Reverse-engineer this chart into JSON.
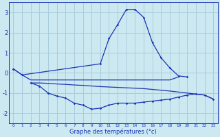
{
  "xlabel": "Graphe des températures (°c)",
  "background_color": "#cce8f0",
  "grid_color": "#aaccdd",
  "line_color": "#1a35b5",
  "hours": [
    0,
    1,
    2,
    3,
    4,
    5,
    6,
    7,
    8,
    9,
    10,
    11,
    12,
    13,
    14,
    15,
    16,
    17,
    18,
    19,
    20,
    21,
    22,
    23
  ],
  "temp_curve": [
    0.2,
    -0.1,
    null,
    null,
    null,
    null,
    null,
    null,
    null,
    null,
    0.45,
    1.7,
    2.4,
    3.15,
    3.15,
    2.75,
    1.5,
    0.75,
    0.25,
    -0.15,
    -0.2,
    null,
    null,
    null
  ],
  "flat_line1": [
    0.2,
    -0.1,
    -0.35,
    -0.35,
    -0.35,
    -0.35,
    -0.35,
    -0.35,
    -0.35,
    -0.35,
    -0.35,
    -0.35,
    -0.35,
    -0.35,
    -0.35,
    -0.35,
    -0.35,
    -0.35,
    -0.35,
    -0.2,
    null,
    null,
    null,
    null
  ],
  "flat_line2": [
    null,
    null,
    -0.5,
    -0.5,
    -0.52,
    -0.55,
    -0.57,
    -0.6,
    -0.62,
    -0.65,
    -0.68,
    -0.7,
    -0.72,
    -0.74,
    -0.76,
    -0.78,
    -0.82,
    -0.86,
    -0.9,
    -0.95,
    -1.0,
    -1.05,
    -1.1,
    -1.3
  ],
  "temp_min_curve": [
    null,
    null,
    -0.5,
    -0.65,
    -1.0,
    -1.15,
    -1.25,
    -1.5,
    -1.6,
    -1.8,
    -1.75,
    -1.6,
    -1.5,
    -1.5,
    -1.5,
    -1.45,
    -1.4,
    -1.35,
    -1.3,
    -1.2,
    -1.1,
    -1.05,
    -1.1,
    -1.3
  ],
  "ylim": [
    -2.5,
    3.5
  ],
  "yticks": [
    -2,
    -1,
    0,
    1,
    2,
    3
  ],
  "xlim": [
    -0.5,
    23.5
  ],
  "xticks": [
    0,
    1,
    2,
    3,
    4,
    5,
    6,
    7,
    8,
    9,
    10,
    11,
    12,
    13,
    14,
    15,
    16,
    17,
    18,
    19,
    20,
    21,
    22,
    23
  ]
}
